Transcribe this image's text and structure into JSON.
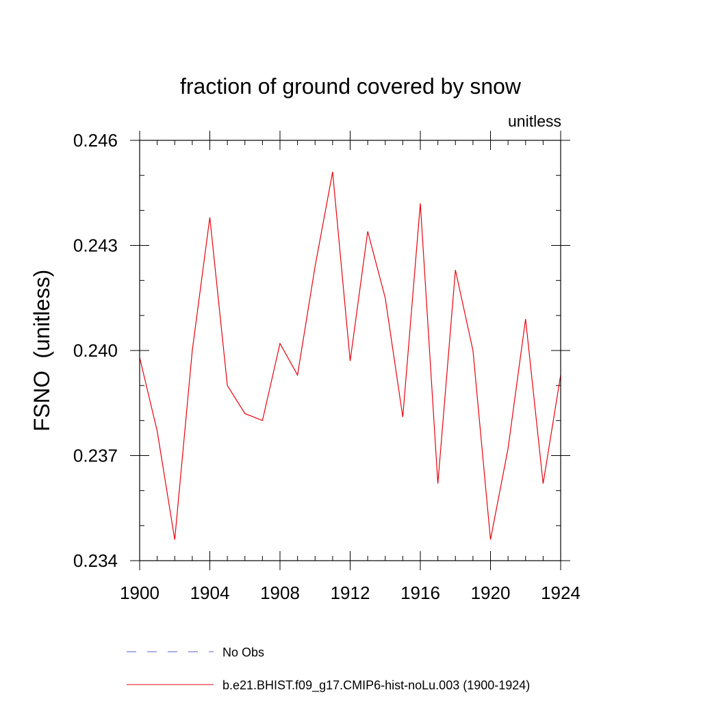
{
  "chart_data": {
    "type": "line",
    "title": "fraction of ground covered by snow",
    "units_label": "unitless",
    "ylabel": "FSNO  (unitless)",
    "xlabel": "",
    "xlim": [
      1900,
      1924
    ],
    "ylim": [
      0.234,
      0.246
    ],
    "x_ticks": [
      1900,
      1904,
      1908,
      1912,
      1916,
      1920,
      1924
    ],
    "x_tick_labels": [
      "1900",
      "1904",
      "1908",
      "1912",
      "1916",
      "1920",
      "1924"
    ],
    "y_ticks": [
      0.234,
      0.237,
      0.24,
      0.243,
      0.246
    ],
    "y_tick_labels": [
      "0.234",
      "0.237",
      "0.240",
      "0.243",
      "0.246"
    ],
    "y_minor_ticks": [
      0.235,
      0.236,
      0.238,
      0.239,
      0.241,
      0.242,
      0.244,
      0.245
    ],
    "x_minor_step": 1,
    "grid": false,
    "legend_position": "bottom",
    "series": [
      {
        "name": "b.e21.BHIST.f09_g17.CMIP6-hist-noLu.003 (1900-1924)",
        "color": "#e8000b",
        "dash": "solid",
        "x": [
          1900,
          1901,
          1902,
          1903,
          1904,
          1905,
          1906,
          1907,
          1908,
          1909,
          1910,
          1911,
          1912,
          1913,
          1914,
          1915,
          1916,
          1917,
          1918,
          1919,
          1920,
          1921,
          1922,
          1923,
          1924
        ],
        "values": [
          0.2398,
          0.2377,
          0.2346,
          0.24,
          0.2438,
          0.239,
          0.2382,
          0.238,
          0.2402,
          0.2393,
          0.2424,
          0.2451,
          0.2397,
          0.2434,
          0.2415,
          0.2381,
          0.2442,
          0.2362,
          0.2423,
          0.24,
          0.2346,
          0.2372,
          0.2409,
          0.2362,
          0.2393
        ]
      }
    ],
    "legend": [
      {
        "label": "No Obs",
        "color": "#5b5bd6",
        "dash": "dashed"
      },
      {
        "label": "b.e21.BHIST.f09_g17.CMIP6-hist-noLu.003 (1900-1924)",
        "color": "#e8000b",
        "dash": "solid"
      }
    ]
  }
}
